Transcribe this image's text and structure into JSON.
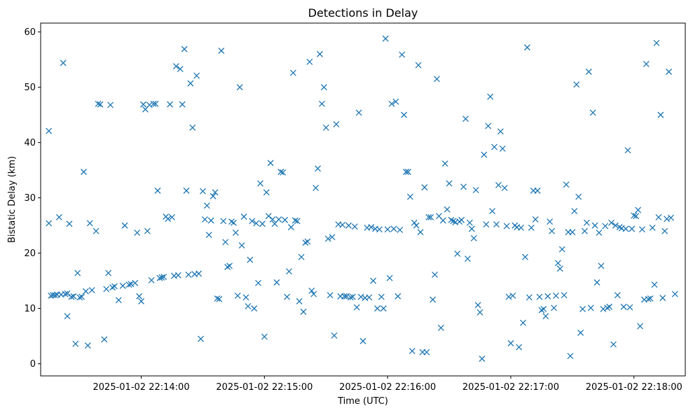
{
  "chart_data": {
    "type": "scatter",
    "title": "Detections in Delay",
    "xlabel": "Time (UTC)",
    "ylabel": "Bistatic Delay (km)",
    "marker": "x",
    "color": "#1f77b4",
    "grid": false,
    "x_ticks": [
      "22:14:00",
      "22:15:00",
      "22:16:00",
      "22:17:00",
      "22:18:00"
    ],
    "x_tick_labels": [
      "2025-01-02 22:14:00",
      "2025-01-02 22:15:00",
      "2025-01-02 22:16:00",
      "2025-01-02 22:17:00",
      "2025-01-02 22:18:00"
    ],
    "xlim": [
      "22:13:11",
      "22:18:25"
    ],
    "y_ticks": [
      0,
      10,
      20,
      30,
      40,
      50,
      60
    ],
    "ylim": [
      -2.2,
      61.6
    ],
    "series": [
      {
        "x": [
          "22:13:15",
          "22:13:15",
          "22:13:16",
          "22:13:17",
          "22:13:18",
          "22:13:19",
          "22:13:20",
          "22:13:21",
          "22:13:22",
          "22:13:23",
          "22:13:24",
          "22:13:24",
          "22:13:25",
          "22:13:26",
          "22:13:27",
          "22:13:28",
          "22:13:29",
          "22:13:30",
          "22:13:31",
          "22:13:32",
          "22:13:33",
          "22:13:34",
          "22:13:35",
          "22:13:36",
          "22:13:38",
          "22:13:39",
          "22:13:40",
          "22:13:42",
          "22:13:43",
          "22:13:44",
          "22:13:45",
          "22:13:46",
          "22:13:47",
          "22:13:49",
          "22:13:51",
          "22:13:52",
          "22:13:54",
          "22:13:55",
          "22:13:57",
          "22:13:58",
          "22:13:59",
          "22:14:00",
          "22:14:01",
          "22:14:02",
          "22:14:03",
          "22:14:04",
          "22:14:05",
          "22:14:06",
          "22:14:07",
          "22:14:08",
          "22:14:09",
          "22:14:10",
          "22:14:11",
          "22:14:12",
          "22:14:13",
          "22:14:14",
          "22:14:15",
          "22:14:16",
          "22:14:17",
          "22:14:18",
          "22:14:19",
          "22:14:20",
          "22:14:21",
          "22:14:22",
          "22:14:23",
          "22:14:24",
          "22:14:25",
          "22:14:26",
          "22:14:27",
          "22:14:28",
          "22:14:29",
          "22:14:30",
          "22:14:31",
          "22:14:32",
          "22:14:33",
          "22:14:34",
          "22:14:35",
          "22:14:36",
          "22:14:37",
          "22:14:38",
          "22:14:39",
          "22:14:40",
          "22:14:41",
          "22:14:42",
          "22:14:43",
          "22:14:44",
          "22:14:45",
          "22:14:46",
          "22:14:47",
          "22:14:48",
          "22:14:49",
          "22:14:50",
          "22:14:51",
          "22:14:52",
          "22:14:53",
          "22:14:54",
          "22:14:55",
          "22:14:56",
          "22:14:57",
          "22:14:58",
          "22:14:59",
          "22:15:00",
          "22:15:01",
          "22:15:02",
          "22:15:03",
          "22:15:04",
          "22:15:05",
          "22:15:06",
          "22:15:07",
          "22:15:08",
          "22:15:09",
          "22:15:10",
          "22:15:11",
          "22:15:12",
          "22:15:13",
          "22:15:14",
          "22:15:15",
          "22:15:16",
          "22:15:17",
          "22:15:18",
          "22:15:19",
          "22:15:20",
          "22:15:21",
          "22:15:22",
          "22:15:23",
          "22:15:24",
          "22:15:25",
          "22:15:26",
          "22:15:27",
          "22:15:28",
          "22:15:29",
          "22:15:30",
          "22:15:31",
          "22:15:32",
          "22:15:33",
          "22:15:34",
          "22:15:35",
          "22:15:36",
          "22:15:37",
          "22:15:38",
          "22:15:39",
          "22:15:40",
          "22:15:41",
          "22:15:42",
          "22:15:43",
          "22:15:44",
          "22:15:45",
          "22:15:46",
          "22:15:47",
          "22:15:48",
          "22:15:49",
          "22:15:50",
          "22:15:51",
          "22:15:52",
          "22:15:53",
          "22:15:54",
          "22:15:55",
          "22:15:56",
          "22:15:57",
          "22:15:58",
          "22:15:59",
          "22:16:00",
          "22:16:01",
          "22:16:02",
          "22:16:03",
          "22:16:04",
          "22:16:05",
          "22:16:06",
          "22:16:07",
          "22:16:08",
          "22:16:09",
          "22:16:10",
          "22:16:11",
          "22:16:12",
          "22:16:13",
          "22:16:14",
          "22:16:15",
          "22:16:16",
          "22:16:17",
          "22:16:18",
          "22:16:19",
          "22:16:20",
          "22:16:21",
          "22:16:22",
          "22:16:23",
          "22:16:24",
          "22:16:25",
          "22:16:26",
          "22:16:27",
          "22:16:28",
          "22:16:29",
          "22:16:30",
          "22:16:31",
          "22:16:32",
          "22:16:33",
          "22:16:34",
          "22:16:35",
          "22:16:36",
          "22:16:37",
          "22:16:38",
          "22:16:39",
          "22:16:40",
          "22:16:41",
          "22:16:42",
          "22:16:43",
          "22:16:44",
          "22:16:45",
          "22:16:46",
          "22:16:47",
          "22:16:48",
          "22:16:49",
          "22:16:50",
          "22:16:51",
          "22:16:52",
          "22:16:53",
          "22:16:54",
          "22:16:55",
          "22:16:56",
          "22:16:57",
          "22:16:58",
          "22:16:59",
          "22:17:00",
          "22:17:01",
          "22:17:02",
          "22:17:03",
          "22:17:04",
          "22:17:05",
          "22:17:06",
          "22:17:07",
          "22:17:08",
          "22:17:09",
          "22:17:10",
          "22:17:11",
          "22:17:12",
          "22:17:13",
          "22:17:14",
          "22:17:15",
          "22:17:16",
          "22:17:17",
          "22:17:18",
          "22:17:19",
          "22:17:20",
          "22:17:21",
          "22:17:22",
          "22:17:23",
          "22:17:24",
          "22:17:25",
          "22:17:26",
          "22:17:27",
          "22:17:28",
          "22:17:29",
          "22:17:30",
          "22:17:31",
          "22:17:32",
          "22:17:33",
          "22:17:34",
          "22:17:35",
          "22:17:36",
          "22:17:37",
          "22:17:38",
          "22:17:39",
          "22:17:40",
          "22:17:41",
          "22:17:42",
          "22:17:43",
          "22:17:44",
          "22:17:45",
          "22:17:46",
          "22:17:47",
          "22:17:48",
          "22:17:49",
          "22:17:50",
          "22:17:51",
          "22:17:52",
          "22:17:53",
          "22:17:54",
          "22:17:55",
          "22:17:56",
          "22:17:57",
          "22:17:58",
          "22:17:59",
          "22:18:00",
          "22:18:01",
          "22:18:02",
          "22:18:03",
          "22:18:04",
          "22:18:05",
          "22:18:06",
          "22:18:07",
          "22:18:08",
          "22:18:09",
          "22:18:10",
          "22:18:11",
          "22:18:12",
          "22:18:13",
          "22:18:14",
          "22:18:15",
          "22:18:16",
          "22:18:17",
          "22:18:18",
          "22:18:20"
        ],
        "y": [
          42.1,
          25.4,
          12.3,
          12.4,
          12.4,
          12.5,
          26.5,
          12.5,
          54.4,
          12.6,
          12.7,
          8.6,
          25.3,
          12.1,
          12.2,
          3.6,
          16.4,
          12.0,
          12.1,
          34.7,
          13.1,
          3.3,
          25.4,
          13.3,
          24.0,
          47.0,
          46.9,
          4.4,
          13.5,
          16.4,
          46.8,
          13.8,
          14.0,
          11.5,
          14.1,
          25.0,
          14.3,
          14.4,
          14.6,
          23.7,
          12.2,
          11.3,
          46.9,
          46.0,
          24.0,
          46.8,
          15.1,
          47.0,
          47.0,
          31.3,
          15.5,
          15.6,
          15.7,
          26.6,
          26.2,
          46.9,
          26.5,
          15.9,
          53.8,
          16.0,
          53.3,
          46.9,
          56.9,
          31.3,
          16.1,
          50.7,
          42.7,
          16.2,
          52.1,
          16.3,
          4.5,
          31.2,
          26.1,
          28.6,
          23.3,
          25.9,
          30.3,
          31.0,
          11.8,
          11.7,
          56.6,
          25.8,
          22.0,
          17.5,
          17.7,
          25.7,
          25.5,
          23.7,
          12.3,
          50.0,
          21.4,
          26.6,
          12.0,
          10.4,
          18.8,
          25.8,
          10.0,
          25.4,
          14.6,
          32.6,
          25.3,
          4.9,
          31.0,
          26.7,
          36.3,
          26.1,
          25.3,
          14.7,
          26.1,
          34.7,
          34.6,
          26.0,
          12.1,
          16.7,
          24.7,
          52.6,
          25.9,
          25.8,
          11.3,
          19.3,
          9.4,
          21.9,
          22.1,
          54.6,
          13.2,
          12.6,
          31.8,
          35.3,
          56.0,
          47.0,
          50.0,
          42.7,
          22.6,
          12.4,
          22.9,
          5.1,
          43.3,
          25.2,
          12.2,
          25.1,
          12.2,
          12.2,
          25.0,
          12.0,
          12.1,
          24.8,
          10.2,
          45.4,
          12.1,
          4.1,
          11.9,
          24.6,
          12.0,
          24.7,
          15.0,
          24.4,
          10.0,
          24.3,
          12.1,
          10.0,
          58.8,
          24.3,
          15.5,
          47.0,
          24.4,
          47.4,
          12.2,
          24.2,
          55.9,
          45.0,
          34.7,
          34.7,
          30.2,
          2.3,
          25.5,
          25.0,
          54.0,
          23.8,
          2.1,
          31.9,
          2.1,
          26.5,
          26.5,
          11.6,
          16.1,
          51.5,
          26.7,
          6.5,
          25.9,
          36.2,
          27.9,
          32.6,
          26.0,
          25.8,
          25.6,
          19.9,
          25.7,
          26.0,
          32.0,
          44.3,
          19.0,
          25.5,
          24.4,
          22.7,
          31.4,
          10.6,
          9.3,
          0.9,
          37.8,
          25.2,
          43.0,
          48.3,
          27.6,
          39.2,
          25.2,
          32.3,
          42.0,
          38.9,
          31.8,
          24.9,
          12.1,
          3.7,
          12.3,
          25.0,
          24.7,
          3.0,
          24.6,
          7.4,
          19.3,
          57.2,
          12.0,
          24.6,
          31.3,
          26.1,
          31.3,
          12.1,
          9.7,
          9.9,
          8.6,
          12.2,
          25.7,
          24.0,
          10.1,
          12.3,
          18.2,
          17.2,
          20.7,
          12.4,
          32.4,
          23.8,
          1.4,
          23.8,
          27.6,
          50.5,
          30.2,
          5.6,
          9.9,
          24.0,
          25.5,
          52.8,
          10.1,
          45.4,
          25.0,
          14.7,
          23.7,
          17.7,
          9.9,
          24.9,
          10.1,
          10.3,
          25.5,
          3.5,
          25.0,
          12.4,
          24.7,
          24.5,
          10.3,
          24.4,
          38.6,
          10.2,
          24.4,
          26.8,
          26.7,
          27.8,
          6.8,
          24.3,
          11.6,
          54.2,
          11.7,
          11.8,
          24.6,
          14.3,
          58.0,
          26.5,
          45.0,
          11.9,
          24.0,
          26.2,
          52.8,
          26.4,
          12.6
        ]
      }
    ]
  }
}
